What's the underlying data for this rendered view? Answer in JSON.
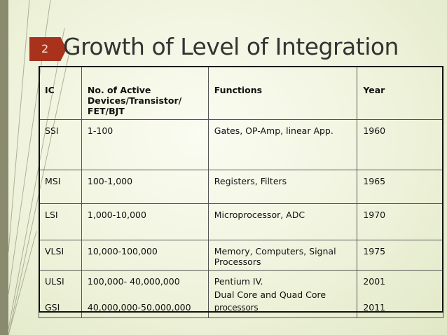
{
  "slide": {
    "number": "2",
    "title": "Growth of Level of Integration"
  },
  "table": {
    "headers": [
      "IC",
      "No. of Active Devices/Transistor/ FET/BJT",
      "Functions",
      "Year"
    ],
    "rows": [
      {
        "ic": "SSI",
        "devices": "1-100",
        "functions": "Gates, OP-Amp, linear App.",
        "year": "1960"
      },
      {
        "ic": "MSI",
        "devices": "100-1,000",
        "functions": "Registers, Filters",
        "year": "1965"
      },
      {
        "ic": "LSI",
        "devices": "1,000-10,000",
        "functions": "Microprocessor, ADC",
        "year": "1970"
      },
      {
        "ic": "VLSI",
        "devices": "10,000-100,000",
        "functions": "Memory, Computers, Signal Processors",
        "year": "1975"
      },
      {
        "ic_a": "ULSI",
        "ic_b": "GSI",
        "devices_a": "100,000- 40,000,000",
        "devices_b": "40,000,000-50,000,000",
        "functions_a": "Pentium IV.",
        "functions_b": "Dual Core and Quad Core",
        "functions_c": "processors",
        "year_a": "2001",
        "year_b": "2011"
      }
    ]
  },
  "colors": {
    "background": "#eff3dc",
    "accent_box": "#a8321c",
    "left_bar": "#8a8a6e"
  }
}
